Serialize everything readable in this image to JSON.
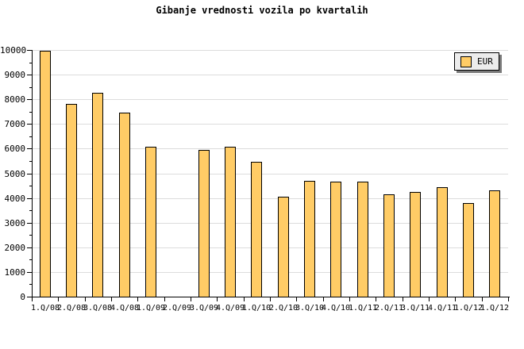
{
  "title": "Gibanje vrednosti vozila po kvartalih",
  "legend": {
    "label": "EUR"
  },
  "colors": {
    "bar_fill": "#ffcc66",
    "bar_border": "#000000",
    "gridline": "#dcdcdc",
    "axis": "#000000",
    "legend_bg": "#ececec",
    "legend_shadow": "#7a7a7a",
    "background": "#ffffff"
  },
  "chart_data": {
    "type": "bar",
    "title": "Gibanje vrednosti vozila po kvartalih",
    "categories": [
      "1.Q/08",
      "2.Q/08",
      "3.Q/08",
      "4.Q/08",
      "1.Q/09",
      "2.Q/09",
      "3.Q/09",
      "4.Q/09",
      "1.Q/10",
      "2.Q/10",
      "3.Q/10",
      "4.Q/10",
      "1.Q/11",
      "2.Q/11",
      "3.Q/11",
      "4.Q/11",
      "1.Q/12",
      "1.Q/12"
    ],
    "series": [
      {
        "name": "EUR",
        "values": [
          9980,
          7800,
          8250,
          7450,
          6080,
          null,
          5950,
          6080,
          5470,
          4050,
          4700,
          4650,
          4650,
          4150,
          4250,
          4450,
          3800,
          4300
        ]
      }
    ],
    "xlabel": "",
    "ylabel": "",
    "ylim": [
      0,
      10000
    ],
    "ytick_step": 1000,
    "ytick_minor_step": 500,
    "grid": "horizontal",
    "legend_position": "top-right",
    "note_missing_bar_category": "2.Q/09"
  }
}
